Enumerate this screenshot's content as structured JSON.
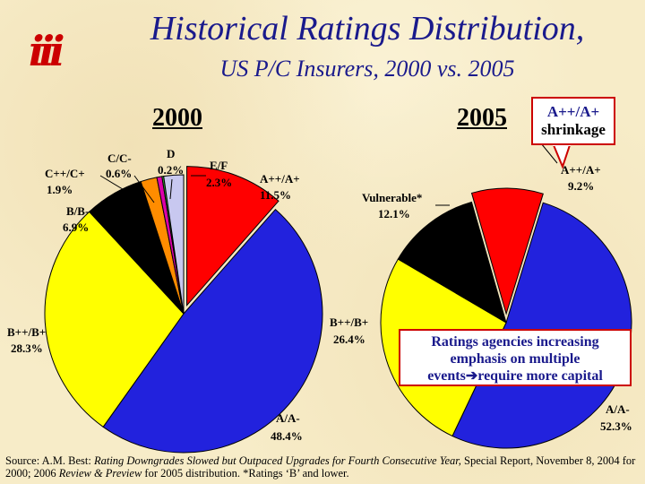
{
  "header": {
    "logo_text": "iii",
    "title": "Historical Ratings Distribution,",
    "subtitle": "US P/C Insurers, 2000 vs. 2005"
  },
  "callout": {
    "line1": "A++/A+",
    "line2": "shrinkage"
  },
  "note": {
    "line1": "Ratings agencies increasing",
    "line2": "emphasis on multiple",
    "line3a": "events",
    "line3b": "require more capital"
  },
  "footer": {
    "source_prefix": "Source: A.M. Best: ",
    "source_italic1": "Rating Downgrades Slowed but Outpaced Upgrades for Fourth Consecutive Year,",
    "source_mid": " Special Report, November 8, 2004 for 2000; 2006 ",
    "source_italic2": "Review & Preview",
    "source_end": "  for 2005 distribution.  *Ratings ‘B’ and lower."
  },
  "colors": {
    "red": "#ff0000",
    "blue": "#2222dd",
    "yellow": "#ffff00",
    "black": "#000000",
    "orange": "#ff8c00",
    "magenta": "#dd00aa",
    "green": "#33aa33",
    "lavender": "#c8c8f0",
    "title": "#1a1a8c"
  },
  "chart_data": [
    {
      "type": "pie",
      "title": "2000",
      "slices": [
        {
          "name": "A++/A+",
          "value": 11.5,
          "label": "A++/A+",
          "pct": "11.5%",
          "color": "#ff0000"
        },
        {
          "name": "A/A-",
          "value": 48.4,
          "label": "A/A-",
          "pct": "48.4%",
          "color": "#2222dd"
        },
        {
          "name": "B++/B+",
          "value": 28.3,
          "label": "B++/B+",
          "pct": "28.3%",
          "color": "#ffff00"
        },
        {
          "name": "B/B-",
          "value": 6.9,
          "label": "B/B-",
          "pct": "6.9%",
          "color": "#000000"
        },
        {
          "name": "C++/C+",
          "value": 1.9,
          "label": "C++/C+",
          "pct": "1.9%",
          "color": "#ff8c00"
        },
        {
          "name": "C/C-",
          "value": 0.6,
          "label": "C/C-",
          "pct": "0.6%",
          "color": "#dd00aa"
        },
        {
          "name": "D",
          "value": 0.2,
          "label": "D",
          "pct": "0.2%",
          "color": "#33aa33"
        },
        {
          "name": "E/F",
          "value": 2.3,
          "label": "E/F",
          "pct": "2.3%",
          "color": "#c8c8f0"
        }
      ]
    },
    {
      "type": "pie",
      "title": "2005",
      "slices": [
        {
          "name": "A++/A+",
          "value": 9.2,
          "label": "A++/A+",
          "pct": "9.2%",
          "color": "#ff0000"
        },
        {
          "name": "A/A-",
          "value": 52.3,
          "label": "A/A-",
          "pct": "52.3%",
          "color": "#2222dd"
        },
        {
          "name": "B++/B+",
          "value": 26.4,
          "label": "B++/B+",
          "pct": "26.4%",
          "color": "#ffff00"
        },
        {
          "name": "Vulnerable*",
          "value": 12.1,
          "label": "Vulnerable*",
          "pct": "12.1%",
          "color": "#000000"
        }
      ]
    }
  ]
}
